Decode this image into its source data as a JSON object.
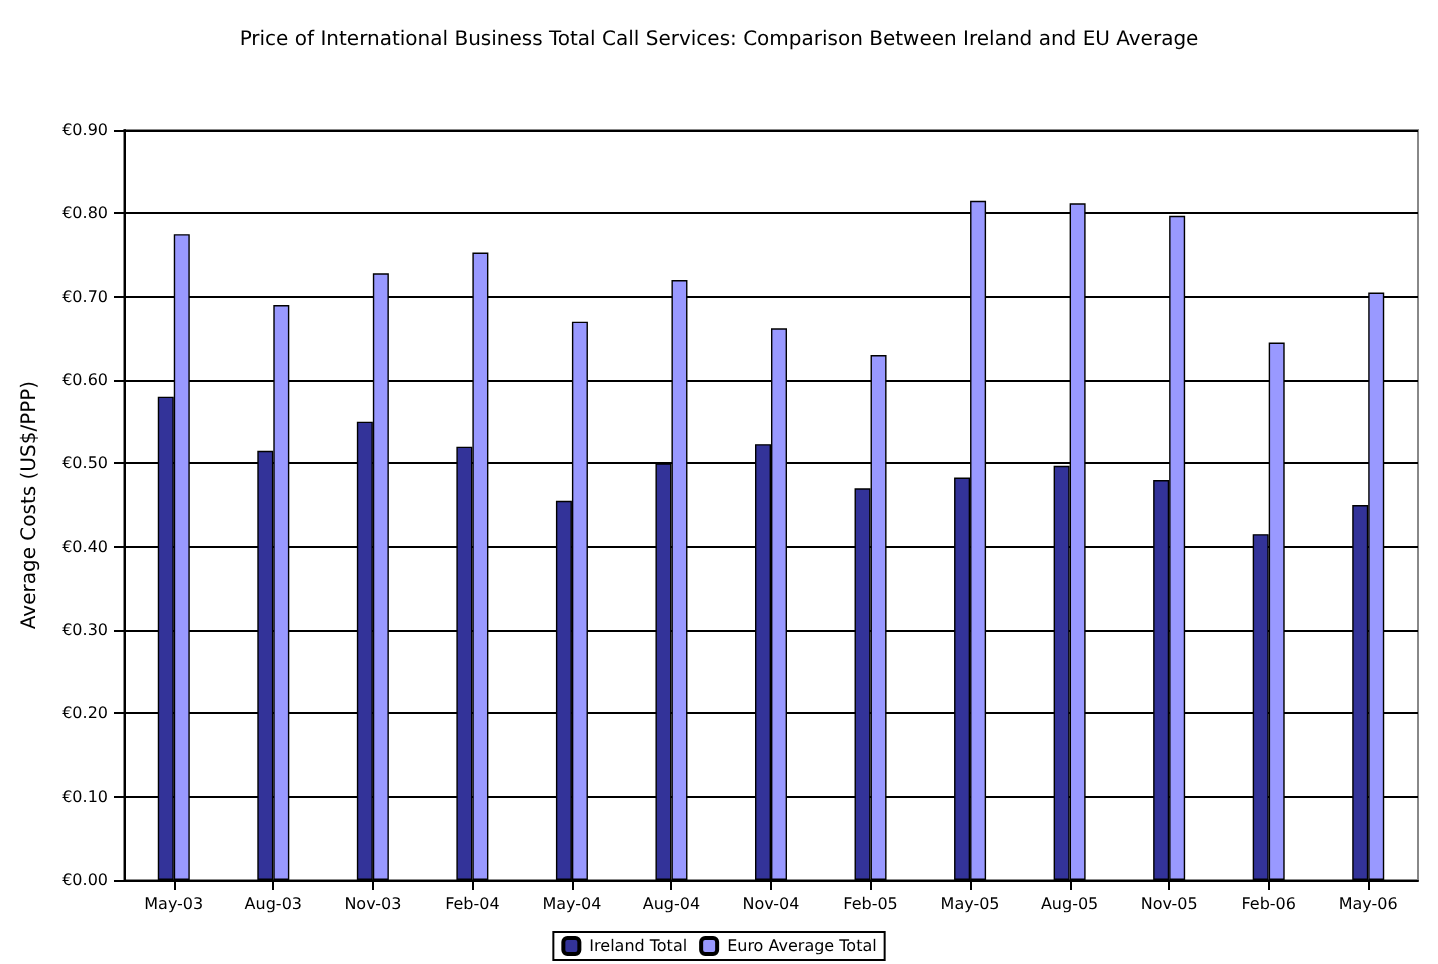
{
  "chart_data": {
    "type": "bar",
    "title": "Price of International Business Total Call Services: Comparison Between Ireland and EU Average",
    "ylabel": "Average Costs (US$/PPP)",
    "categories": [
      "May-03",
      "Aug-03",
      "Nov-03",
      "Feb-04",
      "May-04",
      "Aug-04",
      "Nov-04",
      "Feb-05",
      "May-05",
      "Aug-05",
      "Nov-05",
      "Feb-06",
      "May-06"
    ],
    "series": [
      {
        "name": "Ireland Total",
        "color": "#333399",
        "values": [
          0.58,
          0.515,
          0.55,
          0.52,
          0.455,
          0.5,
          0.523,
          0.47,
          0.483,
          0.497,
          0.48,
          0.415,
          0.45
        ]
      },
      {
        "name": "Euro Average Total",
        "color": "#9999ff",
        "values": [
          0.775,
          0.69,
          0.728,
          0.753,
          0.67,
          0.72,
          0.662,
          0.63,
          0.815,
          0.812,
          0.797,
          0.645,
          0.705
        ]
      }
    ],
    "ylim": [
      0,
      0.9
    ],
    "yticks": [
      {
        "value": 0,
        "label": "€0.00"
      },
      {
        "value": 0.1,
        "label": "€0.10"
      },
      {
        "value": 0.2,
        "label": "€0.20"
      },
      {
        "value": 0.3,
        "label": "€0.30"
      },
      {
        "value": 0.4,
        "label": "€0.40"
      },
      {
        "value": 0.5,
        "label": "€0.50"
      },
      {
        "value": 0.6,
        "label": "€0.60"
      },
      {
        "value": 0.7,
        "label": "€0.70"
      },
      {
        "value": 0.8,
        "label": "€0.80"
      },
      {
        "value": 0.9,
        "label": "€0.90"
      }
    ],
    "grid": "y",
    "legend": "bottom"
  }
}
